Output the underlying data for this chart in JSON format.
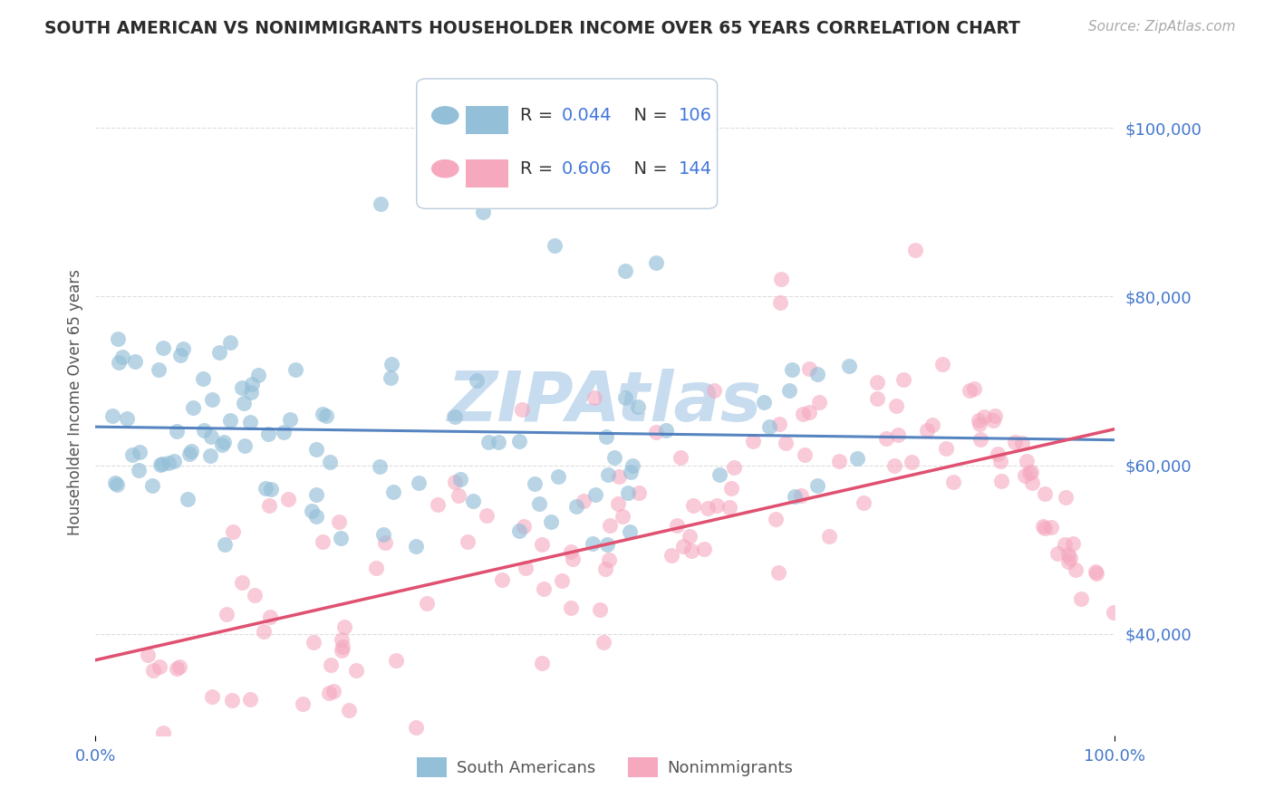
{
  "title": "SOUTH AMERICAN VS NONIMMIGRANTS HOUSEHOLDER INCOME OVER 65 YEARS CORRELATION CHART",
  "source": "Source: ZipAtlas.com",
  "ylabel": "Householder Income Over 65 years",
  "ytick_labels": [
    "$40,000",
    "$60,000",
    "$80,000",
    "$100,000"
  ],
  "ytick_values": [
    40000,
    60000,
    80000,
    100000
  ],
  "ylim": [
    28000,
    107000
  ],
  "xlim": [
    0.0,
    100.0
  ],
  "blue_r": "0.044",
  "blue_n": "106",
  "pink_r": "0.606",
  "pink_n": "144",
  "label_south": "South Americans",
  "label_non": "Nonimmigrants",
  "blue_color": "#94BFD8",
  "pink_color": "#F5A8BE",
  "blue_line_color": "#4477BB",
  "pink_line_color": "#E05070",
  "value_color": "#4477DD",
  "title_color": "#2C2C2C",
  "source_color": "#AAAAAA",
  "ylabel_color": "#555555",
  "axis_tick_color": "#4477CC",
  "grid_color": "#DDDDDD",
  "background_color": "#FFFFFF",
  "watermark": "ZIPAtlas",
  "watermark_color": "#C8DCF0"
}
